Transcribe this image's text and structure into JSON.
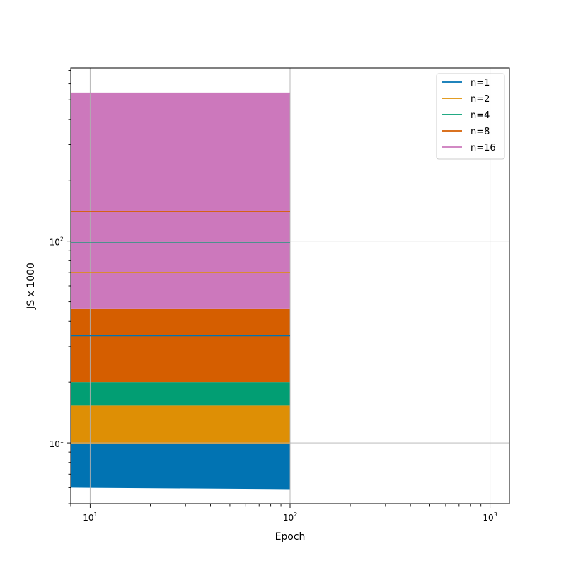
{
  "chart_data": {
    "type": "area",
    "x_scale": "log",
    "y_scale": "log",
    "xlabel": "Epoch",
    "ylabel": "JS x 1000",
    "xlim": [
      8,
      1250
    ],
    "ylim": [
      5,
      720
    ],
    "x_major_ticks": [
      {
        "value": 10,
        "base": "10",
        "exp": "1"
      },
      {
        "value": 100,
        "base": "10",
        "exp": "2"
      },
      {
        "value": 1000,
        "base": "10",
        "exp": "3"
      }
    ],
    "y_major_ticks": [
      {
        "value": 10,
        "base": "10",
        "exp": "1"
      },
      {
        "value": 100,
        "base": "10",
        "exp": "2"
      }
    ],
    "grid": true,
    "legend_position": "top-right",
    "series": [
      {
        "name": "n=1",
        "color": "#0173b2",
        "x": [
          8,
          100
        ],
        "line": [
          34,
          34
        ],
        "band_low": [
          6.0,
          5.9
        ],
        "band_high": [
          9.9,
          9.9
        ]
      },
      {
        "name": "n=2",
        "color": "#de8f05",
        "x": [
          8,
          100
        ],
        "line": [
          70,
          70
        ],
        "band_low": [
          9.9,
          9.9
        ],
        "band_high": [
          15.3,
          15.3
        ]
      },
      {
        "name": "n=4",
        "color": "#029e73",
        "x": [
          8,
          100
        ],
        "line": [
          98,
          98
        ],
        "band_low": [
          15.3,
          15.3
        ],
        "band_high": [
          20,
          20
        ]
      },
      {
        "name": "n=8",
        "color": "#d55e00",
        "x": [
          8,
          100
        ],
        "line": [
          140,
          140
        ],
        "band_low": [
          20,
          20
        ],
        "band_high": [
          46,
          46
        ]
      },
      {
        "name": "n=16",
        "color": "#cc78bc",
        "x": [
          8,
          100
        ],
        "line": [
          540,
          540
        ],
        "band_low": [
          46,
          46
        ],
        "band_high": [
          540,
          540
        ]
      }
    ]
  }
}
